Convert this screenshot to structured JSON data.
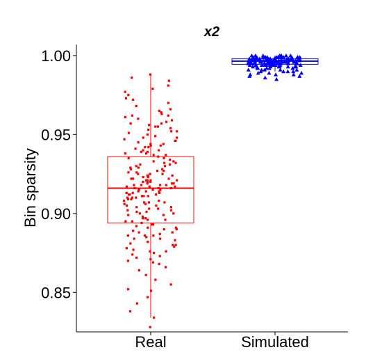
{
  "chart_data": {
    "type": "boxplot",
    "title": "x2",
    "xlabel": "",
    "ylabel": "Bin sparsity",
    "categories": [
      "Real",
      "Simulated"
    ],
    "ylim": [
      0.825,
      1.007
    ],
    "yticks": [
      0.85,
      0.9,
      0.95,
      1.0
    ],
    "ytick_labels": [
      "0.85",
      "0.90",
      "0.95",
      "1.00"
    ],
    "grid": false,
    "legend": "none",
    "series": [
      {
        "category": "Real",
        "color": "#ff0000",
        "marker": "square",
        "box": {
          "whisker_low": 0.834,
          "q1": 0.894,
          "median": 0.916,
          "q3": 0.936,
          "whisker_high": 0.988
        },
        "points": [
          0.828,
          0.834,
          0.838,
          0.843,
          0.847,
          0.851,
          0.852,
          0.855,
          0.858,
          0.861,
          0.864,
          0.866,
          0.868,
          0.87,
          0.871,
          0.872,
          0.873,
          0.874,
          0.875,
          0.876,
          0.877,
          0.878,
          0.879,
          0.88,
          0.881,
          0.882,
          0.883,
          0.884,
          0.885,
          0.886,
          0.887,
          0.888,
          0.889,
          0.89,
          0.891,
          0.892,
          0.893,
          0.894,
          0.895,
          0.896,
          0.897,
          0.898,
          0.899,
          0.9,
          0.901,
          0.902,
          0.903,
          0.904,
          0.905,
          0.906,
          0.907,
          0.908,
          0.909,
          0.91,
          0.911,
          0.912,
          0.913,
          0.914,
          0.915,
          0.916,
          0.917,
          0.918,
          0.919,
          0.92,
          0.921,
          0.922,
          0.923,
          0.924,
          0.925,
          0.926,
          0.927,
          0.928,
          0.929,
          0.93,
          0.931,
          0.932,
          0.933,
          0.934,
          0.935,
          0.936,
          0.937,
          0.938,
          0.939,
          0.94,
          0.941,
          0.942,
          0.943,
          0.944,
          0.945,
          0.946,
          0.947,
          0.948,
          0.949,
          0.95,
          0.951,
          0.952,
          0.953,
          0.954,
          0.955,
          0.956,
          0.957,
          0.958,
          0.959,
          0.96,
          0.961,
          0.962,
          0.963,
          0.964,
          0.965,
          0.966,
          0.968,
          0.97,
          0.972,
          0.973,
          0.975,
          0.977,
          0.979,
          0.981,
          0.984,
          0.986,
          0.988,
          0.905,
          0.915,
          0.925,
          0.91,
          0.92,
          0.93,
          0.9,
          0.918,
          0.922,
          0.913,
          0.908,
          0.927,
          0.935,
          0.897,
          0.912,
          0.917,
          0.921,
          0.906,
          0.932,
          0.924,
          0.899,
          0.911,
          0.919,
          0.928,
          0.903,
          0.914,
          0.923,
          0.909,
          0.916,
          0.926,
          0.902,
          0.918,
          0.931,
          0.895,
          0.912,
          0.92,
          0.907,
          0.915,
          0.924,
          0.893,
          0.901,
          0.929,
          0.919,
          0.913,
          0.921,
          0.888,
          0.884,
          0.942,
          0.946,
          0.952,
          0.938,
          0.944,
          0.957,
          0.876,
          0.88,
          0.869,
          0.948,
          0.955,
          0.962,
          0.939,
          0.886,
          0.891,
          0.933,
          0.94,
          0.886,
          0.89,
          0.937,
          0.943,
          0.896,
          0.904,
          0.925,
          0.917,
          0.911,
          0.907,
          0.921,
          0.914,
          0.91,
          0.918,
          0.922,
          0.916
        ]
      },
      {
        "category": "Simulated",
        "color": "#0000ff",
        "marker": "triangle",
        "box": {
          "whisker_low": 0.99,
          "q1": 0.9945,
          "median": 0.9965,
          "q3": 0.998,
          "whisker_high": 1.0
        },
        "points": [
          0.985,
          0.986,
          0.987,
          0.987,
          0.988,
          0.988,
          0.989,
          0.989,
          0.99,
          0.99,
          0.99,
          0.991,
          0.991,
          0.991,
          0.992,
          0.992,
          0.992,
          0.992,
          0.993,
          0.993,
          0.993,
          0.993,
          0.993,
          0.994,
          0.994,
          0.994,
          0.994,
          0.994,
          0.994,
          0.995,
          0.995,
          0.995,
          0.995,
          0.995,
          0.995,
          0.995,
          0.996,
          0.996,
          0.996,
          0.996,
          0.996,
          0.996,
          0.996,
          0.996,
          0.997,
          0.997,
          0.997,
          0.997,
          0.997,
          0.997,
          0.997,
          0.997,
          0.997,
          0.998,
          0.998,
          0.998,
          0.998,
          0.998,
          0.998,
          0.998,
          0.998,
          0.999,
          0.999,
          0.999,
          0.999,
          0.999,
          0.999,
          0.999,
          1.0,
          1.0,
          1.0,
          1.0,
          1.0,
          1.0,
          0.996,
          0.997,
          0.995,
          0.998,
          0.994,
          0.999,
          0.996,
          0.997,
          0.995,
          0.998,
          0.993,
          0.999,
          0.996,
          0.997,
          0.995,
          0.998,
          0.994,
          0.996,
          0.997,
          0.998,
          0.999,
          0.995,
          0.996,
          0.997,
          0.998,
          0.993,
          0.992,
          0.991,
          0.996,
          0.997,
          0.995,
          0.998,
          0.994,
          0.999,
          1.0,
          0.996,
          0.997,
          0.995,
          0.998,
          0.994,
          0.999,
          0.996,
          0.997,
          0.995,
          0.998,
          0.993,
          0.999,
          0.996,
          0.997,
          0.995,
          0.998,
          0.994,
          0.996,
          0.997,
          0.998,
          0.999,
          0.995,
          0.996,
          0.997,
          0.998,
          0.993,
          0.992,
          0.991,
          0.99,
          0.989,
          0.988,
          0.996,
          0.997,
          0.995,
          0.998,
          0.994,
          0.999,
          1.0,
          0.996,
          0.997,
          0.995,
          0.998,
          0.994,
          0.999,
          0.996,
          0.997
        ]
      }
    ]
  }
}
